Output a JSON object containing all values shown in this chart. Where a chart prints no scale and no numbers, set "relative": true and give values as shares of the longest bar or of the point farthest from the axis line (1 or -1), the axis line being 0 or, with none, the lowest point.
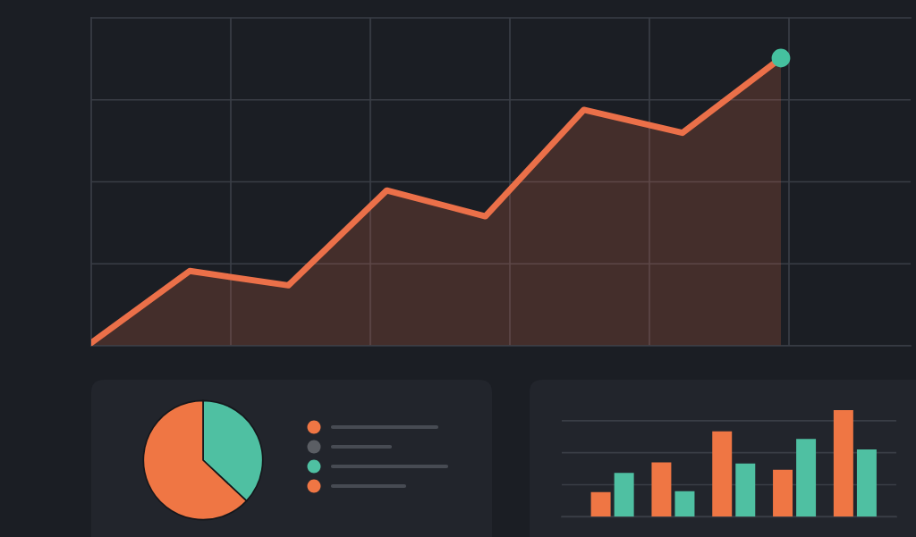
{
  "chart_data": [
    {
      "type": "area",
      "relative": true,
      "categories": [
        null,
        null,
        null,
        null,
        null,
        null,
        null,
        null
      ],
      "grid": true,
      "series": [
        {
          "color": "#eb7049",
          "values": [
            0.01,
            0.26,
            0.21,
            0.54,
            0.45,
            0.82,
            0.74,
            1.0
          ]
        },
        {
          "type": "line",
          "marker": "circle",
          "color": "#45c19f",
          "values": [
            null,
            null,
            null,
            null,
            null,
            null,
            null,
            1.0
          ]
        }
      ]
    },
    {
      "type": "pie",
      "categories": [
        null,
        null
      ],
      "values": [
        37,
        63
      ],
      "colors": [
        "#4fc0a2",
        "#ef7644"
      ]
    },
    {
      "type": "bar",
      "relative": true,
      "categories": [
        null,
        null,
        null,
        null,
        null
      ],
      "grid": "y",
      "series": [
        {
          "color": "#ef7644",
          "values": [
            0.23,
            0.51,
            0.8,
            0.44,
            1.0
          ]
        },
        {
          "color": "#4fc0a2",
          "values": [
            0.41,
            0.24,
            0.5,
            0.73,
            0.63
          ]
        }
      ]
    }
  ]
}
